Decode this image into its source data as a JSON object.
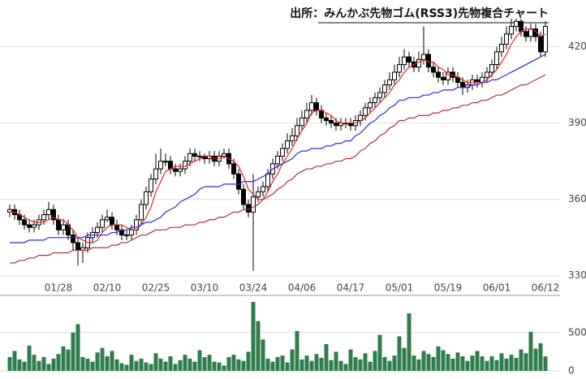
{
  "chart_data": [
    {
      "type": "candlestick",
      "title": "出所：みんかぶ先物ゴム(RSS3)先物複合チャート",
      "categories": [
        null,
        null,
        null,
        null,
        null,
        null,
        null,
        null,
        null,
        null,
        "01/28",
        null,
        null,
        null,
        null,
        null,
        null,
        null,
        null,
        null,
        "02/10",
        null,
        null,
        null,
        null,
        null,
        null,
        null,
        null,
        null,
        "02/25",
        null,
        null,
        null,
        null,
        null,
        null,
        null,
        null,
        null,
        "03/10",
        null,
        null,
        null,
        null,
        null,
        null,
        null,
        null,
        null,
        "03/24",
        null,
        null,
        null,
        null,
        null,
        null,
        null,
        null,
        null,
        "04/06",
        null,
        null,
        null,
        null,
        null,
        null,
        null,
        null,
        null,
        "04/17",
        null,
        null,
        null,
        null,
        null,
        null,
        null,
        null,
        null,
        "05/01",
        null,
        null,
        null,
        null,
        null,
        null,
        null,
        null,
        null,
        "05/19",
        null,
        null,
        null,
        null,
        null,
        null,
        null,
        null,
        null,
        "06/01",
        null,
        null,
        null,
        null,
        null,
        null,
        null,
        null,
        null,
        "06/12"
      ],
      "open": [
        355,
        356,
        354,
        352,
        350,
        349,
        350,
        352,
        354,
        356,
        352,
        348,
        350,
        346,
        343,
        340,
        341,
        345,
        347,
        349,
        352,
        353,
        350,
        348,
        346,
        346,
        348,
        352,
        358,
        363,
        368,
        372,
        375,
        375,
        372,
        371,
        372,
        375,
        378,
        377,
        377,
        376,
        377,
        375,
        377,
        378,
        374,
        370,
        364,
        358,
        355,
        361,
        363,
        365,
        370,
        374,
        377,
        380,
        383,
        385,
        389,
        392,
        395,
        398,
        395,
        392,
        391,
        390,
        389,
        390,
        390,
        389,
        391,
        393,
        396,
        398,
        400,
        402,
        405,
        407,
        410,
        413,
        416,
        414,
        412,
        415,
        417,
        412,
        410,
        408,
        407,
        410,
        408,
        406,
        404,
        405,
        407,
        406,
        408,
        410,
        413,
        418,
        421,
        425,
        428,
        430,
        426,
        424,
        427,
        424,
        418
      ],
      "high": [
        358,
        358,
        356,
        354,
        352,
        352,
        354,
        356,
        359,
        358,
        354,
        352,
        352,
        348,
        345,
        343,
        347,
        349,
        351,
        354,
        356,
        355,
        352,
        350,
        348,
        350,
        354,
        360,
        365,
        370,
        378,
        380,
        378,
        377,
        374,
        374,
        377,
        380,
        380,
        379,
        378,
        379,
        379,
        379,
        380,
        380,
        376,
        372,
        366,
        360,
        370,
        365,
        367,
        372,
        376,
        379,
        382,
        386,
        388,
        392,
        395,
        398,
        401,
        400,
        397,
        394,
        393,
        392,
        392,
        392,
        392,
        393,
        395,
        398,
        400,
        402,
        404,
        407,
        410,
        413,
        416,
        419,
        418,
        416,
        418,
        428,
        419,
        414,
        412,
        410,
        412,
        412,
        410,
        408,
        407,
        409,
        409,
        410,
        412,
        415,
        420,
        424,
        428,
        431,
        431,
        431,
        428,
        429,
        429,
        426,
        430
      ],
      "low": [
        353,
        352,
        350,
        348,
        347,
        347,
        348,
        350,
        352,
        350,
        346,
        346,
        344,
        340,
        334,
        335,
        339,
        343,
        345,
        347,
        351,
        348,
        346,
        344,
        344,
        344,
        346,
        350,
        356,
        361,
        366,
        370,
        373,
        370,
        369,
        369,
        370,
        373,
        375,
        375,
        374,
        374,
        373,
        373,
        376,
        372,
        368,
        362,
        356,
        353,
        332,
        359,
        361,
        363,
        368,
        372,
        375,
        378,
        381,
        383,
        387,
        390,
        393,
        393,
        390,
        389,
        388,
        387,
        387,
        388,
        387,
        387,
        389,
        391,
        394,
        396,
        398,
        400,
        403,
        405,
        408,
        411,
        412,
        410,
        410,
        413,
        410,
        408,
        406,
        405,
        405,
        406,
        404,
        401,
        402,
        403,
        404,
        404,
        406,
        408,
        411,
        416,
        419,
        423,
        426,
        424,
        422,
        422,
        422,
        416,
        416
      ],
      "close": [
        356,
        354,
        352,
        350,
        349,
        350,
        352,
        354,
        356,
        352,
        348,
        350,
        346,
        343,
        340,
        341,
        345,
        347,
        349,
        352,
        353,
        350,
        348,
        346,
        346,
        348,
        352,
        358,
        363,
        368,
        372,
        375,
        375,
        372,
        371,
        372,
        375,
        378,
        377,
        377,
        376,
        377,
        375,
        377,
        378,
        374,
        370,
        364,
        358,
        355,
        361,
        363,
        365,
        370,
        374,
        377,
        380,
        383,
        385,
        389,
        392,
        395,
        398,
        395,
        392,
        391,
        390,
        389,
        390,
        390,
        389,
        391,
        393,
        396,
        398,
        400,
        402,
        405,
        407,
        410,
        413,
        416,
        414,
        412,
        415,
        417,
        412,
        410,
        408,
        407,
        410,
        408,
        406,
        404,
        405,
        407,
        406,
        408,
        410,
        413,
        418,
        421,
        425,
        428,
        430,
        426,
        424,
        427,
        424,
        418,
        428
      ],
      "up_color": "#ffffff",
      "down_color": "#000000",
      "series": [
        {
          "color": "#e0281e",
          "values": [
            355,
            355,
            354,
            353,
            352,
            351,
            351,
            351,
            352,
            353,
            352,
            352,
            350,
            348,
            345,
            344,
            343,
            343,
            344,
            347,
            349,
            350,
            350,
            350,
            349,
            348,
            348,
            350,
            353,
            357,
            363,
            367,
            371,
            372,
            373,
            373,
            373,
            374,
            375,
            376,
            377,
            377,
            376,
            376,
            377,
            376,
            375,
            373,
            369,
            364,
            362,
            360,
            360,
            363,
            367,
            370,
            374,
            377,
            380,
            384,
            387,
            390,
            394,
            395,
            395,
            394,
            393,
            391,
            390,
            390,
            390,
            390,
            391,
            392,
            394,
            396,
            398,
            400,
            402,
            405,
            407,
            410,
            412,
            413,
            414,
            415,
            414,
            414,
            412,
            411,
            409,
            409,
            408,
            407,
            406,
            406,
            406,
            406,
            407,
            409,
            411,
            414,
            417,
            421,
            424,
            426,
            427,
            427,
            426,
            424,
            425
          ]
        },
        {
          "color": "#2a2ae0",
          "values": [
            343,
            343,
            343,
            343,
            344,
            344,
            344,
            344,
            345,
            345,
            345,
            345,
            345,
            345,
            345,
            345,
            346,
            346,
            346,
            346,
            346,
            347,
            347,
            348,
            348,
            349,
            349,
            350,
            351,
            351,
            352,
            353,
            355,
            356,
            357,
            359,
            360,
            361,
            362,
            364,
            365,
            365,
            365,
            365,
            366,
            366,
            366,
            366,
            367,
            367,
            367,
            368,
            369,
            370,
            372,
            373,
            374,
            375,
            376,
            378,
            379,
            379,
            380,
            380,
            380,
            381,
            381,
            382,
            382,
            383,
            383,
            385,
            386,
            388,
            390,
            391,
            393,
            394,
            396,
            397,
            399,
            399,
            400,
            400,
            400,
            401,
            401,
            402,
            402,
            403,
            403,
            403,
            404,
            404,
            404,
            405,
            405,
            406,
            406,
            407,
            407,
            408,
            409,
            410,
            411,
            412,
            413,
            414,
            415,
            416,
            417
          ]
        },
        {
          "color": "#b03030",
          "values": [
            335,
            335,
            336,
            336,
            337,
            337,
            338,
            338,
            338,
            339,
            339,
            339,
            339,
            340,
            340,
            340,
            340,
            341,
            341,
            341,
            341,
            342,
            342,
            343,
            343,
            344,
            345,
            346,
            346,
            347,
            348,
            348,
            348,
            349,
            349,
            349,
            350,
            350,
            350,
            351,
            351,
            352,
            352,
            353,
            353,
            354,
            355,
            355,
            356,
            356,
            357,
            358,
            360,
            361,
            362,
            364,
            365,
            367,
            368,
            370,
            371,
            372,
            372,
            373,
            373,
            374,
            374,
            375,
            375,
            376,
            376,
            377,
            379,
            380,
            382,
            383,
            385,
            386,
            388,
            389,
            391,
            391,
            392,
            392,
            393,
            393,
            393,
            394,
            394,
            395,
            395,
            396,
            396,
            397,
            397,
            398,
            398,
            399,
            399,
            400,
            401,
            401,
            402,
            403,
            404,
            405,
            405,
            406,
            407,
            408,
            409
          ]
        }
      ],
      "ylim": [
        328,
        432
      ],
      "yticks": [
        330,
        360,
        390,
        420
      ],
      "grid": true
    },
    {
      "type": "bar",
      "color": "#2e7d4a",
      "values": [
        180,
        260,
        150,
        120,
        330,
        210,
        130,
        180,
        90,
        160,
        220,
        320,
        280,
        500,
        610,
        180,
        160,
        120,
        240,
        300,
        190,
        260,
        150,
        100,
        80,
        210,
        130,
        160,
        110,
        90,
        230,
        160,
        120,
        190,
        90,
        140,
        210,
        160,
        120,
        270,
        180,
        210,
        120,
        110,
        70,
        180,
        210,
        150,
        130,
        250,
        900,
        650,
        410,
        160,
        120,
        180,
        200,
        110,
        280,
        520,
        150,
        200,
        130,
        220,
        170,
        350,
        140,
        250,
        130,
        90,
        280,
        180,
        150,
        230,
        120,
        260,
        470,
        180,
        130,
        200,
        450,
        300,
        750,
        200,
        150,
        260,
        220,
        180,
        320,
        270,
        220,
        160,
        240,
        190,
        130,
        200,
        260,
        190,
        130,
        190,
        140,
        230,
        160,
        210,
        170,
        280,
        230,
        510,
        290,
        360,
        190
      ],
      "ylim": [
        0,
        900
      ],
      "yticks": [
        0,
        500
      ],
      "grid": true
    }
  ]
}
